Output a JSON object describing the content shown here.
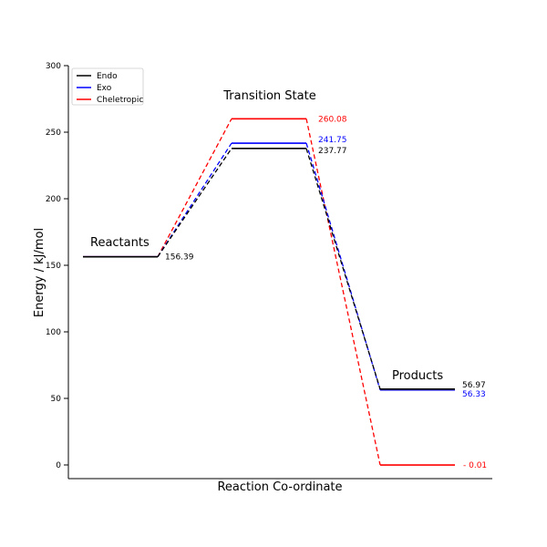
{
  "chart_data": {
    "type": "line",
    "title": "",
    "xlabel": "Reaction Co-ordinate",
    "ylabel": "Energy / kJ/mol",
    "ylim": [
      -10,
      300
    ],
    "yticks": [
      0,
      50,
      100,
      150,
      200,
      250,
      300
    ],
    "stages": [
      "Reactants",
      "Transition State",
      "Products"
    ],
    "stage_labels": {
      "reactants": "Reactants",
      "ts": "Transition State",
      "products": "Products"
    },
    "legend_position": "top-left",
    "series": [
      {
        "name": "Endo",
        "color": "#000000",
        "values": [
          156.39,
          237.77,
          56.97
        ],
        "labels": [
          "156.39",
          "237.77",
          "56.97"
        ]
      },
      {
        "name": "Exo",
        "color": "#0000ff",
        "values": [
          156.39,
          241.75,
          56.33
        ],
        "labels": [
          "",
          "241.75",
          "56.33"
        ]
      },
      {
        "name": "Cheletropic",
        "color": "#ff0000",
        "values": [
          156.39,
          260.08,
          -0.01
        ],
        "labels": [
          "",
          "260.08",
          "- 0.01"
        ]
      }
    ]
  }
}
